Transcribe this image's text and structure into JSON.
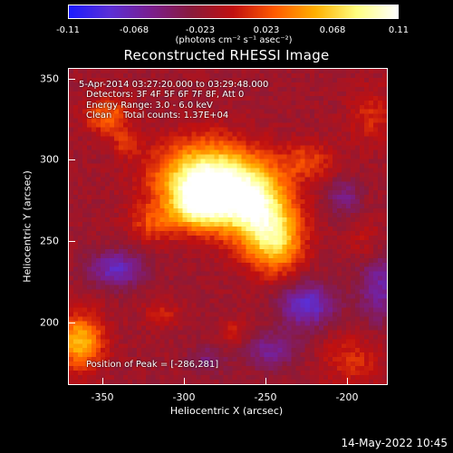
{
  "colorbar": {
    "ticks": [
      "-0.11",
      "-0.068",
      "-0.023",
      "0.023",
      "0.068",
      "0.11"
    ],
    "units": "(photons cm⁻² s⁻¹ asec⁻²)",
    "colors": [
      "#1a1aff",
      "#5b2fd6",
      "#7a1e8e",
      "#8a1a3a",
      "#c01010",
      "#ff5a00",
      "#ffb000",
      "#ffff80",
      "#ffffff"
    ]
  },
  "title": "Reconstructed RHESSI Image",
  "info": {
    "time_range": "5-Apr-2014 03:27:20.000 to 03:29:48.000",
    "detectors": "Detectors: 3F 4F 5F 6F 7F 8F, Att 0",
    "energy": "Energy Range: 3.0 - 6.0 keV",
    "clean": "Clean    Total counts: 1.37E+04",
    "peak": "Position of Peak = [-286,281]"
  },
  "axes": {
    "xlabel": "Heliocentric X (arcsec)",
    "ylabel": "Heliocentric Y (arcsec)",
    "xticks": [
      "-350",
      "-300",
      "-250",
      "-200"
    ],
    "yticks": [
      "350",
      "300",
      "250",
      "200"
    ]
  },
  "timestamp": "14-May-2022 10:45",
  "chart_data": {
    "type": "heatmap",
    "title": "Reconstructed RHESSI Image",
    "xlabel": "Heliocentric X (arcsec)",
    "ylabel": "Heliocentric Y (arcsec)",
    "xlim": [
      -369,
      -174
    ],
    "ylim": [
      163,
      357
    ],
    "xticks": [
      -350,
      -300,
      -250,
      -200
    ],
    "yticks": [
      200,
      250,
      300,
      350
    ],
    "colorbar_range": [
      -0.11,
      0.11
    ],
    "peak_position": [
      -286,
      281
    ]
  }
}
